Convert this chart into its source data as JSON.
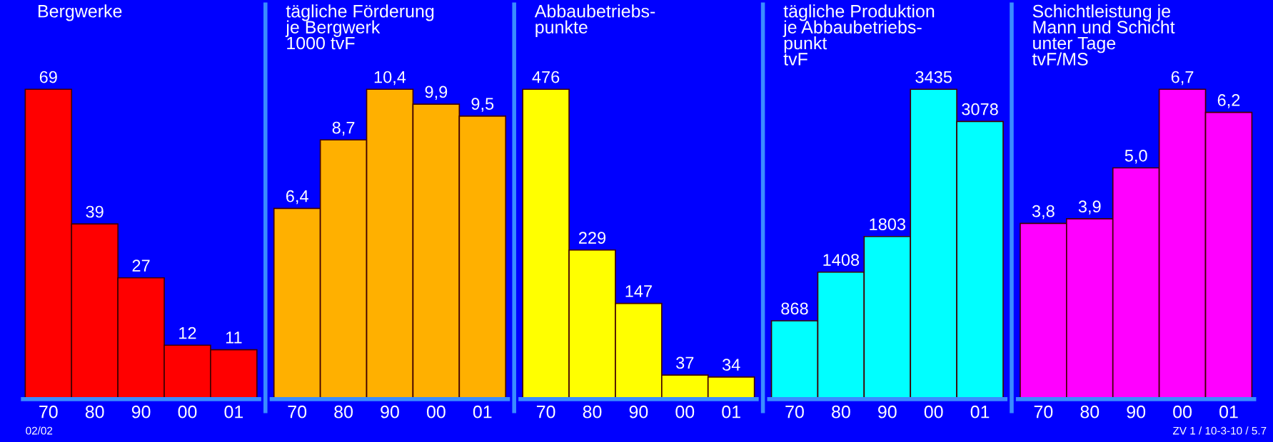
{
  "chart_data": [
    {
      "type": "bar",
      "title": "Bergwerke",
      "categories": [
        "70",
        "80",
        "90",
        "00",
        "01"
      ],
      "values": [
        69,
        39,
        27,
        12,
        11
      ],
      "color": "#ff0000",
      "data_labels": true,
      "tick_labels": "x",
      "grid": false,
      "legend": false,
      "annotations": [
        "02/02"
      ]
    },
    {
      "type": "bar",
      "title": "tägliche Förderung\nje Bergwerk\n1000 tvF",
      "categories": [
        "70",
        "80",
        "90",
        "00",
        "01"
      ],
      "values": [
        6.4,
        8.7,
        10.4,
        9.9,
        9.5
      ],
      "value_labels": [
        "6,4",
        "8,7",
        "10,4",
        "9,9",
        "9,5"
      ],
      "color": "#ffb000",
      "tick_labels": "x",
      "grid": false,
      "legend": false
    },
    {
      "type": "bar",
      "title": "Abbaubetriebs-\npunkte",
      "categories": [
        "70",
        "80",
        "90",
        "00",
        "01"
      ],
      "values": [
        476,
        229,
        147,
        37,
        34
      ],
      "color": "#ffff00",
      "data_labels": true,
      "tick_labels": "x",
      "grid": false,
      "legend": false
    },
    {
      "type": "bar",
      "title": "tägliche Produktion\nje Abbaubetriebs-\npunkt\ntvF",
      "categories": [
        "70",
        "80",
        "90",
        "00",
        "01"
      ],
      "values": [
        868,
        1408,
        1803,
        3435,
        3078
      ],
      "color": "#00ffff",
      "data_labels": true,
      "tick_labels": "x",
      "grid": false,
      "legend": false
    },
    {
      "type": "bar",
      "title": "Schichtleistung je\nMann und Schicht\nunter Tage\ntvF/MS",
      "categories": [
        "70",
        "80",
        "90",
        "00",
        "01"
      ],
      "values": [
        3.8,
        3.9,
        5.0,
        6.7,
        6.2
      ],
      "value_labels": [
        "3,8",
        "3,9",
        "5,0",
        "6,7",
        "6,2"
      ],
      "color": "#ff00ff",
      "tick_labels": "x",
      "grid": false,
      "legend": false,
      "annotations": [
        "ZV 1 / 10-3-10 / 5.7"
      ]
    }
  ]
}
